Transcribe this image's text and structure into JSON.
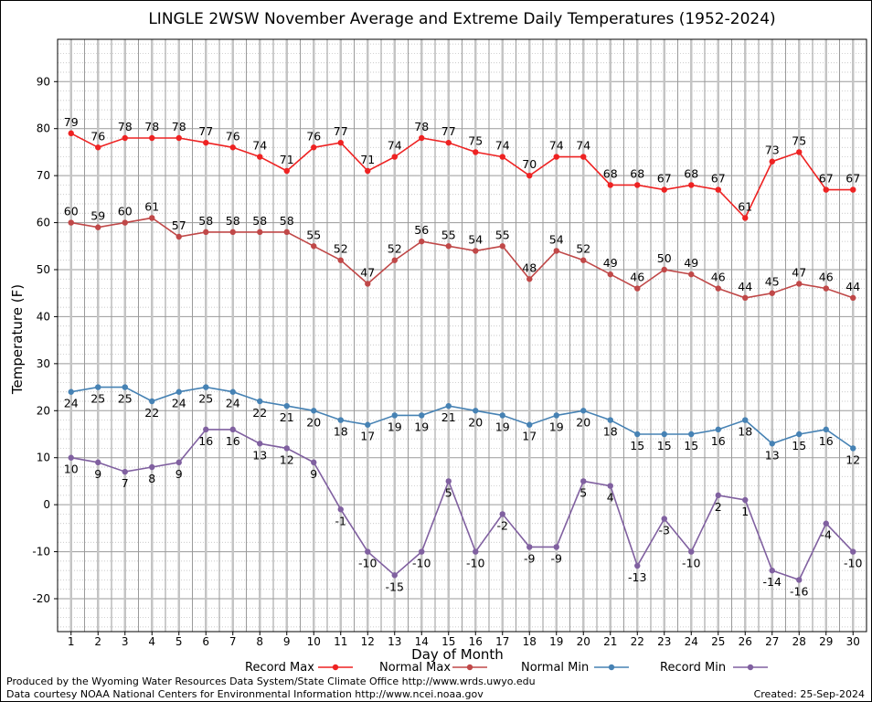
{
  "chart_data": {
    "type": "line",
    "title": "LINGLE 2WSW November Average and Extreme Daily Temperatures (1952-2024)",
    "xlabel": "Day of Month",
    "ylabel": "Temperature (F)",
    "x": [
      1,
      2,
      3,
      4,
      5,
      6,
      7,
      8,
      9,
      10,
      11,
      12,
      13,
      14,
      15,
      16,
      17,
      18,
      19,
      20,
      21,
      22,
      23,
      24,
      25,
      26,
      27,
      28,
      29,
      30
    ],
    "xlim": [
      0.5,
      30.5
    ],
    "ylim": [
      -27,
      99
    ],
    "yticks": [
      -20,
      -10,
      0,
      10,
      20,
      30,
      40,
      50,
      60,
      70,
      80,
      90
    ],
    "grid": true,
    "legend_position": "bottom",
    "series": [
      {
        "name": "Record Max",
        "color": "#ee2222",
        "label_pos": "above",
        "values": [
          79,
          76,
          78,
          78,
          78,
          77,
          76,
          74,
          71,
          76,
          77,
          71,
          74,
          78,
          77,
          75,
          74,
          70,
          74,
          74,
          68,
          68,
          67,
          68,
          67,
          61,
          73,
          75,
          67,
          67
        ]
      },
      {
        "name": "Normal Max",
        "color": "#c04848",
        "label_pos": "above",
        "values": [
          60,
          59,
          60,
          61,
          57,
          58,
          58,
          58,
          58,
          55,
          52,
          47,
          52,
          56,
          55,
          54,
          55,
          48,
          54,
          52,
          49,
          46,
          50,
          49,
          46,
          44,
          45,
          47,
          46,
          44
        ]
      },
      {
        "name": "Normal Min",
        "color": "#4682b4",
        "label_pos": "below",
        "values": [
          24,
          25,
          25,
          22,
          24,
          25,
          24,
          22,
          21,
          20,
          18,
          17,
          19,
          19,
          21,
          20,
          19,
          17,
          19,
          20,
          18,
          15,
          15,
          15,
          16,
          18,
          13,
          15,
          16,
          12
        ]
      },
      {
        "name": "Record Min",
        "color": "#8060a0",
        "label_pos": "below",
        "values": [
          10,
          9,
          7,
          8,
          9,
          16,
          16,
          13,
          12,
          9,
          -1,
          -10,
          -15,
          -10,
          5,
          -10,
          -2,
          -9,
          -9,
          5,
          4,
          -13,
          -3,
          -10,
          2,
          1,
          -14,
          -16,
          -4,
          -10
        ]
      }
    ]
  },
  "footer": {
    "produced_by": "Produced by the Wyoming Water Resources Data System/State Climate Office http://www.wrds.uwyo.edu",
    "courtesy": "Data courtesy NOAA National Centers for Environmental Information http://www.ncei.noaa.gov",
    "created": "Created: 25-Sep-2024"
  }
}
